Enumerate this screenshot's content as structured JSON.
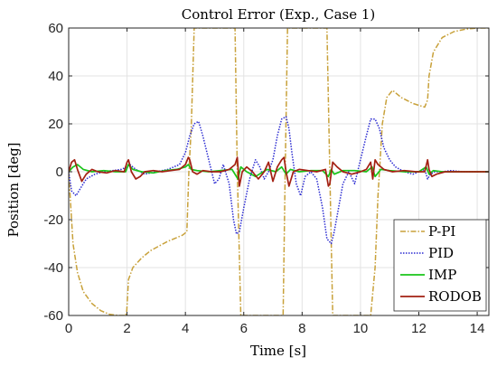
{
  "chart_data": {
    "type": "line",
    "title": "Control Error (Exp., Case 1)",
    "xlabel": "Time [s]",
    "ylabel": "Position [deg]",
    "xlim": [
      0,
      14.4
    ],
    "ylim": [
      -60,
      60
    ],
    "xticks": [
      0,
      2,
      4,
      6,
      8,
      10,
      12,
      14
    ],
    "yticks": [
      -60,
      -40,
      -20,
      0,
      20,
      40,
      60
    ],
    "xtick_labels": [
      "0",
      "2",
      "4",
      "6",
      "8",
      "10",
      "12",
      "14"
    ],
    "ytick_labels": [
      "-60",
      "-40",
      "-20",
      "0",
      "20",
      "40",
      "60"
    ],
    "grid": true,
    "legend_position": "bottom-right",
    "series": [
      {
        "name": "P-PI",
        "color": "#c8a13a",
        "style": "dash-dot",
        "x": [
          0,
          0.05,
          0.15,
          0.3,
          0.5,
          0.8,
          1.1,
          1.4,
          1.7,
          1.95,
          1.99,
          2.05,
          2.2,
          2.5,
          2.8,
          3.1,
          3.4,
          3.7,
          3.9,
          4.05,
          4.12,
          4.2,
          4.3,
          4.5,
          4.8,
          5.1,
          5.4,
          5.6,
          5.7,
          5.78,
          5.9,
          6.3,
          6.8,
          7.2,
          7.35,
          7.42,
          7.5,
          8.0,
          8.5,
          8.85,
          8.95,
          9.05,
          9.5,
          10.0,
          10.35,
          10.5,
          10.6,
          10.75,
          10.9,
          11.1,
          11.4,
          11.8,
          12.2,
          12.3,
          12.35,
          12.5,
          12.8,
          13.2,
          13.6,
          14.0,
          14.4
        ],
        "y": [
          0,
          -10,
          -30,
          -42,
          -50,
          -55,
          -58,
          -59.5,
          -60,
          -60,
          -58,
          -45,
          -40,
          -36,
          -33,
          -31,
          -29,
          -27.5,
          -26.5,
          -25,
          0,
          18,
          60,
          60,
          60,
          60,
          60,
          60,
          60,
          0,
          -60,
          -60,
          -60,
          -60,
          -60,
          0,
          60,
          60,
          60,
          60,
          0,
          -60,
          -60,
          -60,
          -60,
          -40,
          -10,
          20,
          31,
          34,
          31,
          28.5,
          27,
          30,
          40,
          50,
          56,
          58.5,
          59.5,
          60,
          60
        ]
      },
      {
        "name": "PID",
        "color": "#2a2ad1",
        "style": "dotted",
        "x": [
          0,
          0.1,
          0.25,
          0.4,
          0.6,
          0.9,
          1.2,
          1.5,
          1.8,
          2.0,
          2.1,
          2.3,
          2.6,
          3.0,
          3.4,
          3.8,
          4.0,
          4.15,
          4.3,
          4.45,
          4.6,
          4.8,
          5.0,
          5.15,
          5.3,
          5.5,
          5.65,
          5.75,
          5.85,
          6.0,
          6.2,
          6.4,
          6.55,
          6.7,
          6.85,
          7.0,
          7.15,
          7.3,
          7.45,
          7.55,
          7.65,
          7.8,
          7.95,
          8.1,
          8.3,
          8.5,
          8.7,
          8.85,
          9.0,
          9.1,
          9.25,
          9.4,
          9.6,
          9.8,
          10.0,
          10.2,
          10.35,
          10.5,
          10.65,
          10.8,
          11.0,
          11.2,
          11.5,
          11.8,
          12.0,
          12.2,
          12.3,
          12.4,
          12.55,
          12.8,
          13.1,
          13.5,
          14.0,
          14.4
        ],
        "y": [
          0,
          -8,
          -10,
          -7,
          -3,
          -1,
          0,
          0.5,
          1,
          2,
          3,
          1,
          -1,
          0,
          1,
          3,
          8,
          15,
          20,
          21,
          15,
          5,
          -5,
          -3,
          3,
          -5,
          -20,
          -26,
          -25,
          -15,
          -3,
          5,
          2,
          -3,
          0,
          5,
          15,
          22,
          23,
          18,
          8,
          -5,
          -10,
          -2,
          0,
          -3,
          -15,
          -28,
          -30,
          -25,
          -15,
          -5,
          0,
          -5,
          5,
          15,
          22,
          22,
          18,
          10,
          5,
          2,
          0,
          -1,
          0,
          1,
          -3,
          -1,
          0,
          0,
          0.5,
          0,
          0,
          0
        ]
      },
      {
        "name": "IMP",
        "color": "#19c419",
        "style": "solid",
        "x": [
          0,
          0.15,
          0.3,
          0.5,
          0.8,
          1.2,
          1.6,
          1.95,
          2.05,
          2.2,
          2.5,
          2.9,
          3.3,
          3.7,
          4.0,
          4.1,
          4.2,
          4.4,
          4.8,
          5.2,
          5.6,
          5.8,
          5.9,
          6.1,
          6.4,
          6.8,
          7.1,
          7.3,
          7.45,
          7.6,
          7.9,
          8.3,
          8.7,
          8.9,
          9.0,
          9.1,
          9.4,
          9.8,
          10.2,
          10.4,
          10.5,
          10.7,
          11.0,
          11.5,
          12.0,
          12.25,
          12.35,
          12.5,
          12.8,
          13.2,
          13.6,
          14.0,
          14.4
        ],
        "y": [
          0,
          2,
          3,
          1,
          0,
          0.5,
          0,
          0,
          3,
          1,
          0,
          -0.5,
          0.5,
          1,
          2,
          3,
          1,
          0.5,
          0,
          0.5,
          1,
          -3,
          2,
          0,
          -2,
          1,
          0,
          2,
          -1,
          1,
          0,
          0.5,
          0.5,
          -2,
          1,
          -1,
          0.5,
          0.5,
          0,
          2,
          -2,
          1,
          0.5,
          0,
          0,
          2,
          -1,
          0.5,
          0,
          0,
          0,
          0,
          0
        ]
      },
      {
        "name": "RODOB",
        "color": "#a32012",
        "style": "solid",
        "x": [
          0,
          0.1,
          0.2,
          0.3,
          0.45,
          0.6,
          0.8,
          1.0,
          1.3,
          1.6,
          1.9,
          2.0,
          2.05,
          2.15,
          2.3,
          2.45,
          2.6,
          2.9,
          3.2,
          3.5,
          3.8,
          4.0,
          4.1,
          4.15,
          4.25,
          4.4,
          4.6,
          4.9,
          5.2,
          5.5,
          5.7,
          5.78,
          5.85,
          5.95,
          6.1,
          6.3,
          6.5,
          6.7,
          6.85,
          7.0,
          7.15,
          7.3,
          7.38,
          7.45,
          7.55,
          7.7,
          7.9,
          8.2,
          8.5,
          8.8,
          8.9,
          8.95,
          9.05,
          9.2,
          9.4,
          9.7,
          10.0,
          10.2,
          10.35,
          10.42,
          10.5,
          10.6,
          10.8,
          11.1,
          11.5,
          11.9,
          12.2,
          12.3,
          12.35,
          12.45,
          12.6,
          12.9,
          13.3,
          13.7,
          14.0,
          14.4
        ],
        "y": [
          0,
          4,
          5,
          1,
          -4,
          -1,
          1,
          0,
          -0.5,
          0.5,
          0,
          4,
          5,
          0,
          -3,
          -2,
          0,
          0.5,
          0,
          0.5,
          1,
          3,
          6,
          5,
          0,
          -1,
          0.5,
          0,
          0,
          1,
          3,
          6,
          -6,
          0,
          2,
          0,
          -3,
          0,
          4,
          -4,
          2,
          5,
          6,
          0,
          -6,
          0,
          1,
          0.5,
          0,
          1,
          -6,
          -5,
          4,
          2,
          0,
          -1,
          0,
          1,
          4,
          -3,
          5,
          3,
          1,
          0,
          0.5,
          0,
          0,
          5,
          1,
          -2,
          -1,
          0,
          0,
          0,
          0,
          0
        ]
      }
    ]
  }
}
